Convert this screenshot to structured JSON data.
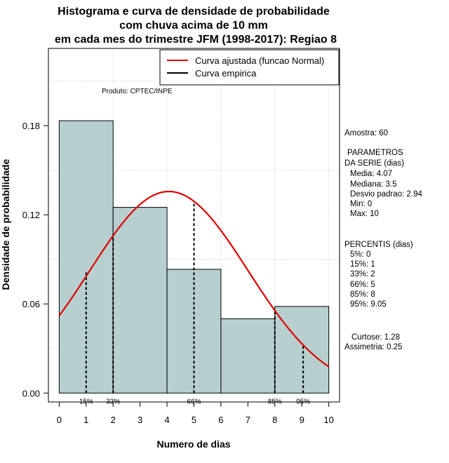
{
  "chart_data": {
    "type": "bar",
    "title_lines": [
      "Histograma e curva de densidade de probabilidade",
      "com chuva acima de 10 mm",
      "em cada mes do trimestre JFM (1998-2017): Regiao 8"
    ],
    "xlabel": "Numero de dias",
    "ylabel": "Densidade de probabilidade",
    "xlim": [
      -0.4,
      10.4
    ],
    "ylim": [
      -0.006,
      0.232
    ],
    "x_ticks": [
      0,
      1,
      2,
      3,
      4,
      5,
      6,
      7,
      8,
      9,
      10
    ],
    "x_tick_labels": [
      "0",
      "1",
      "2",
      "3",
      "4",
      "5",
      "6",
      "7",
      "8",
      "9",
      "10"
    ],
    "y_ticks": [
      0.0,
      0.06,
      0.12,
      0.18
    ],
    "y_tick_labels": [
      "0.00",
      "0.06",
      "0.12",
      "0.18"
    ],
    "bins": [
      {
        "from": 0,
        "to": 2,
        "density": 0.1833
      },
      {
        "from": 2,
        "to": 4,
        "density": 0.125
      },
      {
        "from": 4,
        "to": 6,
        "density": 0.0833
      },
      {
        "from": 6,
        "to": 8,
        "density": 0.05
      },
      {
        "from": 8,
        "to": 10,
        "density": 0.0583
      }
    ],
    "normal_curve": {
      "name": "Curva ajustada (funcao Normal)",
      "mean": 4.07,
      "sd": 2.94,
      "x_range": [
        0,
        10
      ],
      "color": "#e00000"
    },
    "empirical_curve": {
      "name": "Curva empirica",
      "color": "#000000"
    },
    "percentile_lines": [
      {
        "label": "15%",
        "x": 1,
        "top": 0.082
      },
      {
        "label": "33%",
        "x": 2,
        "top": 0.107
      },
      {
        "label": "66%",
        "x": 5,
        "top": 0.129
      },
      {
        "label": "85%",
        "x": 8,
        "top": 0.055
      },
      {
        "label": "95%",
        "x": 9.05,
        "top": 0.032
      }
    ],
    "legend": {
      "position": "top-right",
      "entries": [
        {
          "label": "Curva ajustada (funcao Normal)",
          "color": "#e00000"
        },
        {
          "label": "Curva empirica",
          "color": "#000000"
        }
      ]
    },
    "product_note": "Produto: CPTEC/INPE",
    "bar_color": "#b8cfcf",
    "grid": true
  },
  "stats": {
    "amostra": "Amostra: 60",
    "param_header_1": "PARAMETROS",
    "param_header_2": "DA SERIE (dias)",
    "media": "Media: 4.07",
    "mediana": "Mediana: 3.5",
    "desvio": "Desvio padrao: 2.94",
    "min": "Min: 0",
    "max": "Max: 10",
    "perc_header": "PERCENTIS (dias)",
    "p5": "5%: 0",
    "p15": "15%: 1",
    "p33": "33%: 2",
    "p66": "66%: 5",
    "p85": "85%: 8",
    "p95": "95%: 9.05",
    "curtose": "Curtose: 1.28",
    "assimetria": "Assimetria: 0.25"
  }
}
